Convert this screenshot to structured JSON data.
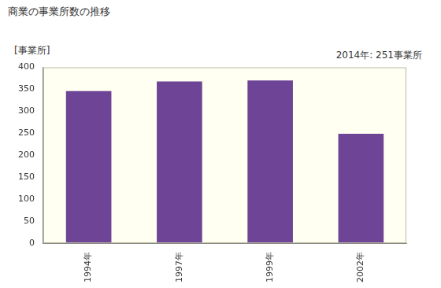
{
  "chart_data": {
    "type": "bar",
    "title": "商業の事業所数の推移",
    "y_label": "[事業所]",
    "annotation": "2014年: 251事業所",
    "categories": [
      "1994年",
      "1997年",
      "1999年",
      "2002年"
    ],
    "values": [
      346,
      368,
      370,
      249
    ],
    "color": "#6e4496",
    "ylim": [
      0,
      400
    ],
    "yticks": [
      0,
      50,
      100,
      150,
      200,
      250,
      300,
      350,
      400
    ],
    "grid": false
  }
}
